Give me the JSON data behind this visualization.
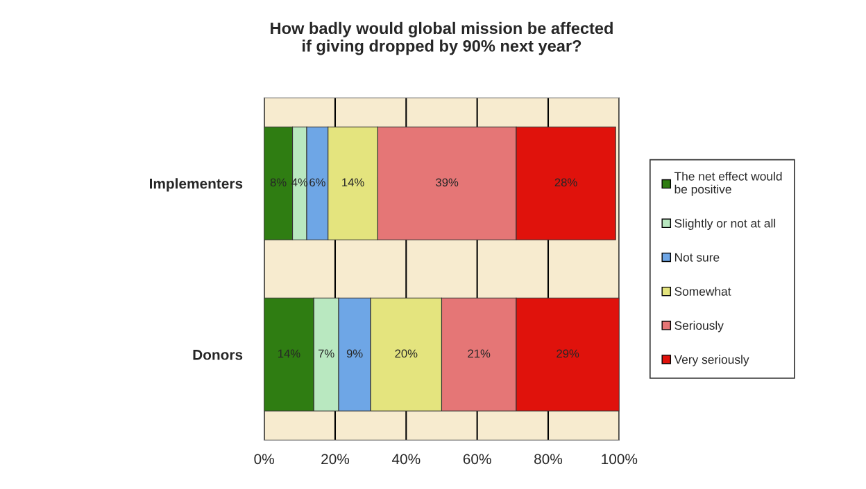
{
  "chart_data": {
    "type": "bar",
    "orientation": "horizontal",
    "stacked": true,
    "title": "How badly would global mission be affected\nif giving dropped by 90% next year?",
    "categories": [
      "Implementers",
      "Donors"
    ],
    "series": [
      {
        "name": "The net effect would\nbe positive",
        "color": "#2f7d12",
        "values": [
          8,
          14
        ],
        "value_labels": [
          "8%",
          "14%"
        ]
      },
      {
        "name": "Slightly or not at all",
        "color": "#b9e8c0",
        "values": [
          4,
          7
        ],
        "value_labels": [
          "4%",
          "7%"
        ]
      },
      {
        "name": "Not sure",
        "color": "#6ea6e6",
        "values": [
          6,
          9
        ],
        "value_labels": [
          "6%",
          "9%"
        ]
      },
      {
        "name": "Somewhat",
        "color": "#e4e47e",
        "values": [
          14,
          20
        ],
        "value_labels": [
          "14%",
          "20%"
        ]
      },
      {
        "name": "Seriously",
        "color": "#e57676",
        "values": [
          39,
          21
        ],
        "value_labels": [
          "39%",
          "21%"
        ]
      },
      {
        "name": "Very seriously",
        "color": "#e0120c",
        "values": [
          28,
          29
        ],
        "value_labels": [
          "28%",
          "29%"
        ]
      }
    ],
    "xlim": [
      0,
      100
    ],
    "xticks": [
      {
        "value": 0,
        "label": "0%"
      },
      {
        "value": 20,
        "label": "20%"
      },
      {
        "value": 40,
        "label": "40%"
      },
      {
        "value": 60,
        "label": "60%"
      },
      {
        "value": 80,
        "label": "80%"
      },
      {
        "value": 100,
        "label": "100%"
      }
    ],
    "grid": "x",
    "legend": "right"
  }
}
